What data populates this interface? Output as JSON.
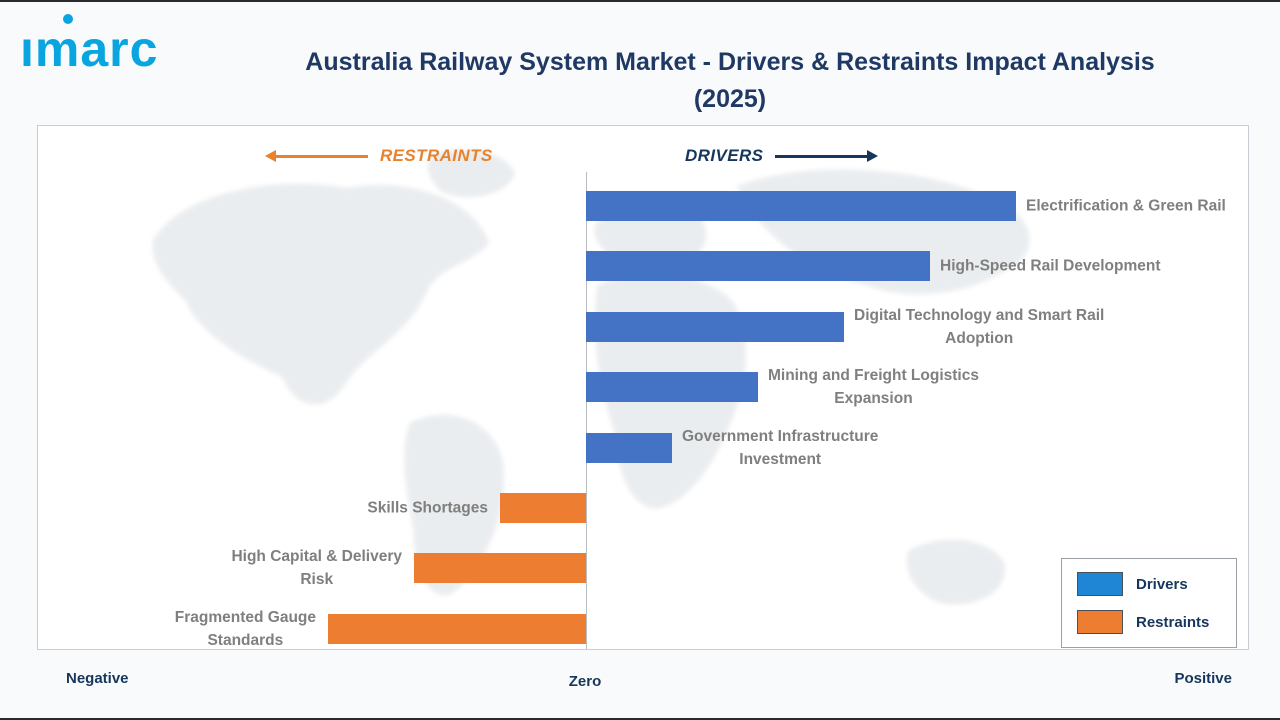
{
  "brand": {
    "logo_text": "imarc",
    "logo_color": "#09A5E0"
  },
  "header": {
    "title_line1": "Australia Railway System Market - Drivers & Restraints Impact Analysis",
    "title_line2": "(2025)"
  },
  "chart_data": {
    "type": "bar",
    "variant": "diverging-horizontal",
    "title": "Australia Railway System Market - Drivers & Restraints Impact Analysis (2025)",
    "group_labels": {
      "restraints": "RESTRAINTS",
      "drivers": "DRIVERS"
    },
    "axis": {
      "negative_label": "Negative",
      "zero_label": "Zero",
      "positive_label": "Positive",
      "value_range": [
        -3,
        5
      ]
    },
    "series": [
      {
        "name": "Drivers",
        "direction": "positive",
        "color": "#4472C4",
        "items": [
          {
            "label": "Electrification & Green Rail",
            "value": 5
          },
          {
            "label": "High-Speed Rail Development",
            "value": 4
          },
          {
            "label": "Digital Technology and Smart Rail\nAdoption",
            "value": 3
          },
          {
            "label": "Mining and Freight Logistics\nExpansion",
            "value": 2
          },
          {
            "label": "Government Infrastructure\nInvestment",
            "value": 1
          }
        ]
      },
      {
        "name": "Restraints",
        "direction": "negative",
        "color": "#ED7D31",
        "items": [
          {
            "label": "Skills Shortages",
            "value": 1
          },
          {
            "label": "High Capital & Delivery\nRisk",
            "value": 2
          },
          {
            "label": "Fragmented Gauge\nStandards",
            "value": 3
          }
        ]
      }
    ],
    "legend": [
      {
        "label": "Drivers",
        "color": "#1F86D6"
      },
      {
        "label": "Restraints",
        "color": "#ED7D31"
      }
    ]
  }
}
